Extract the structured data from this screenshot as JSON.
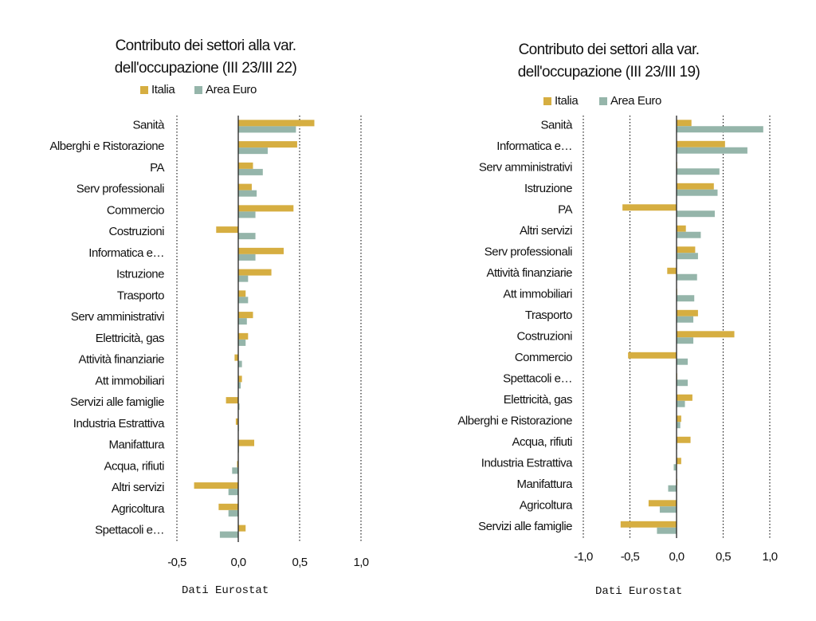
{
  "colors": {
    "italia": "#d6ae41",
    "area_euro": "#95b5aa",
    "axis": "#222222",
    "grid": "#222222"
  },
  "chart_data": [
    {
      "type": "bar",
      "orientation": "horizontal",
      "title_lines": [
        "Contributo dei settori alla var.",
        "dell'occupazione (III 23/III 22)"
      ],
      "legend": [
        "Italia",
        "Area Euro"
      ],
      "legend_position": "top",
      "grid": "dotted vertical",
      "source": "Dati Eurostat",
      "xlim": [
        -0.5,
        1.0
      ],
      "ticks": [
        -0.5,
        0.0,
        0.5,
        1.0
      ],
      "tick_labels": [
        "-0,5",
        "0,0",
        "0,5",
        "1,0"
      ],
      "categories": [
        "Sanità",
        "Alberghi e Ristorazione",
        "PA",
        "Serv professionali",
        "Commercio",
        "Costruzioni",
        "Informatica e…",
        "Istruzione",
        "Trasporto",
        "Serv amministrativi",
        "Elettricità, gas",
        "Attività finanziarie",
        "Att immobiliari",
        "Servizi alle famiglie",
        "Industria Estrattiva",
        "Manifattura",
        "Acqua, rifiuti",
        "Altri servizi",
        "Agricoltura",
        "Spettacoli e…"
      ],
      "series": [
        {
          "name": "Italia",
          "values": [
            0.62,
            0.48,
            0.12,
            0.11,
            0.45,
            -0.18,
            0.37,
            0.27,
            0.06,
            0.12,
            0.08,
            -0.03,
            0.03,
            -0.1,
            -0.02,
            0.13,
            -0.01,
            -0.36,
            -0.16,
            0.06
          ]
        },
        {
          "name": "Area Euro",
          "values": [
            0.47,
            0.24,
            0.2,
            0.15,
            0.14,
            0.14,
            0.14,
            0.08,
            0.08,
            0.07,
            0.06,
            0.03,
            0.02,
            0.01,
            0.0,
            0.0,
            -0.05,
            -0.08,
            -0.08,
            -0.15
          ]
        }
      ]
    },
    {
      "type": "bar",
      "orientation": "horizontal",
      "title_lines": [
        "Contributo dei settori alla var.",
        "dell'occupazione (III 23/III 19)"
      ],
      "legend": [
        "Italia",
        "Area Euro"
      ],
      "legend_position": "top",
      "grid": "dotted vertical",
      "source": "Dati Eurostat",
      "xlim": [
        -1.0,
        1.0
      ],
      "ticks": [
        -1.0,
        -0.5,
        0.0,
        0.5,
        1.0
      ],
      "tick_labels": [
        "-1,0",
        "-0,5",
        "0,0",
        "0,5",
        "1,0"
      ],
      "categories": [
        "Sanità",
        "Informatica e…",
        "Serv amministrativi",
        "Istruzione",
        "PA",
        "Altri servizi",
        "Serv professionali",
        "Attività finanziarie",
        "Att immobiliari",
        "Trasporto",
        "Costruzioni",
        "Commercio",
        "Spettacoli e…",
        "Elettricità, gas",
        "Alberghi e Ristorazione",
        "Acqua, rifiuti",
        "Industria Estrattiva",
        "Manifattura",
        "Agricoltura",
        "Servizi alle famiglie"
      ],
      "series": [
        {
          "name": "Italia",
          "values": [
            0.16,
            0.52,
            0.0,
            0.4,
            -0.58,
            0.1,
            0.2,
            -0.1,
            0.0,
            0.23,
            0.62,
            -0.52,
            0.0,
            0.17,
            0.05,
            0.15,
            0.05,
            0.0,
            -0.3,
            -0.6
          ]
        },
        {
          "name": "Area Euro",
          "values": [
            0.93,
            0.76,
            0.46,
            0.44,
            0.41,
            0.26,
            0.23,
            0.22,
            0.19,
            0.18,
            0.18,
            0.12,
            0.12,
            0.09,
            0.04,
            0.0,
            -0.03,
            -0.09,
            -0.18,
            -0.21
          ]
        }
      ]
    }
  ]
}
